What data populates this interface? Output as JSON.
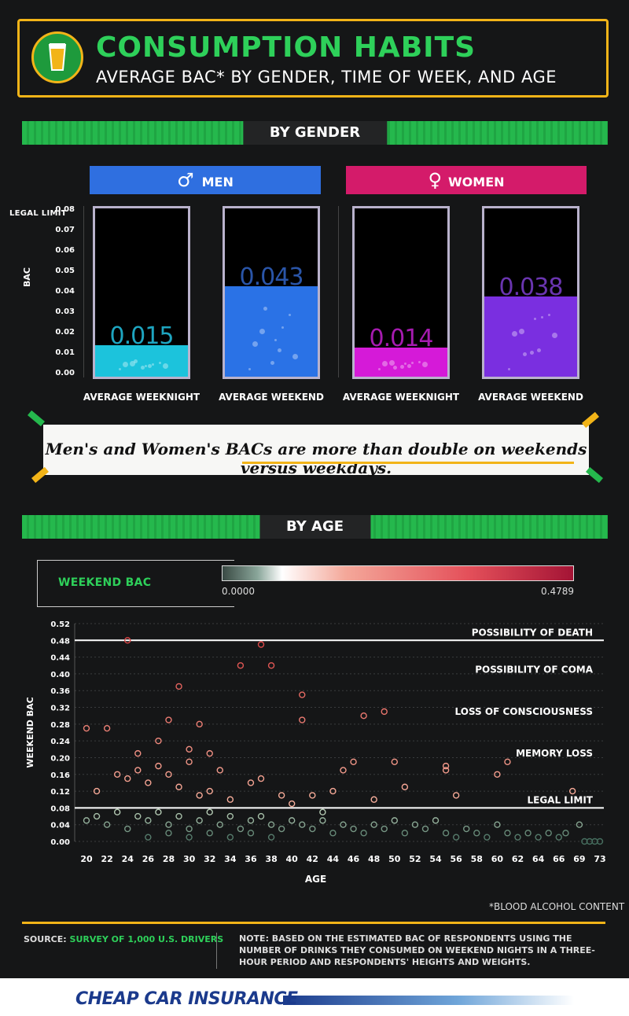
{
  "header": {
    "title": "CONSUMPTION HABITS",
    "subtitle": "AVERAGE BAC* BY GENDER, TIME OF WEEK, AND AGE"
  },
  "gender_section": {
    "band_label": "BY GENDER",
    "men_label": "MEN",
    "women_label": "WOMEN",
    "y_axis_label": "BAC",
    "legal_limit_label": "LEGAL LIMIT",
    "colors": {
      "men": "#2f6fe0",
      "women": "#d41b6a"
    }
  },
  "callout": {
    "text": "Men's and Women's BACs are more than double on weekends versus weekdays."
  },
  "age_section": {
    "band_label": "BY AGE",
    "legend_label": "WEEKEND BAC",
    "legend_min": "0.0000",
    "legend_max": "0.4789",
    "footnote": "*BLOOD ALCOHOL CONTENT"
  },
  "footer": {
    "source_prefix": "SOURCE:",
    "source_text": "SURVEY OF 1,000 U.S. DRIVERS",
    "note": "NOTE: BASED ON THE ESTIMATED BAC OF RESPONDENTS USING THE NUMBER OF DRINKS THEY CONSUMED ON WEEKEND NIGHTS IN A THREE-HOUR PERIOD AND RESPONDENTS' HEIGHTS AND WEIGHTS.",
    "brand": "CHEAP CAR INSURANCE"
  },
  "chart_data": [
    {
      "type": "bar",
      "ylabel": "BAC",
      "ylim": [
        0,
        0.08
      ],
      "y_ticks": [
        "0.00",
        "0.01",
        "0.02",
        "0.03",
        "0.04",
        "0.05",
        "0.06",
        "0.07",
        "0.08"
      ],
      "categories": [
        "AVERAGE WEEKNIGHT",
        "AVERAGE WEEKEND",
        "AVERAGE WEEKNIGHT",
        "AVERAGE WEEKEND"
      ],
      "groups": [
        "MEN",
        "MEN",
        "WOMEN",
        "WOMEN"
      ],
      "values": [
        0.015,
        0.043,
        0.014,
        0.038
      ],
      "value_labels": [
        "0.015",
        "0.043",
        "0.014",
        "0.038"
      ],
      "colors": [
        "#1cc3dc",
        "#2a72e6",
        "#d51ad8",
        "#7a2fe0"
      ],
      "label_colors": [
        "#1ea5c0",
        "#2a55a8",
        "#a61bb0",
        "#6a35b0"
      ]
    },
    {
      "type": "scatter",
      "xlabel": "AGE",
      "ylabel": "WEEKEND BAC",
      "ylim": [
        0,
        0.52
      ],
      "y_ticks": [
        "0.00",
        "0.04",
        "0.08",
        "0.12",
        "0.16",
        "0.20",
        "0.24",
        "0.28",
        "0.32",
        "0.36",
        "0.40",
        "0.44",
        "0.48",
        "0.52"
      ],
      "x_ticks": [
        "20",
        "22",
        "24",
        "26",
        "28",
        "30",
        "32",
        "34",
        "36",
        "38",
        "40",
        "42",
        "44",
        "46",
        "48",
        "50",
        "52",
        "54",
        "56",
        "58",
        "60",
        "62",
        "64",
        "66",
        "69",
        "73"
      ],
      "thresholds": [
        {
          "label": "POSSIBILITY OF DEATH",
          "value": 0.48,
          "line": true
        },
        {
          "label": "POSSIBILITY OF COMA",
          "value": 0.41,
          "line": false
        },
        {
          "label": "LOSS OF CONSCIOUSNESS",
          "value": 0.31,
          "line": false
        },
        {
          "label": "MEMORY LOSS",
          "value": 0.21,
          "line": false
        },
        {
          "label": "LEGAL LIMIT",
          "value": 0.08,
          "line": true
        }
      ],
      "points": [
        [
          20,
          0.27
        ],
        [
          22,
          0.27
        ],
        [
          24,
          0.48
        ],
        [
          25,
          0.21
        ],
        [
          27,
          0.24
        ],
        [
          28,
          0.29
        ],
        [
          29,
          0.37
        ],
        [
          30,
          0.22
        ],
        [
          31,
          0.28
        ],
        [
          32,
          0.21
        ],
        [
          35,
          0.42
        ],
        [
          36,
          0.14
        ],
        [
          37,
          0.47
        ],
        [
          38,
          0.42
        ],
        [
          41,
          0.35
        ],
        [
          41,
          0.29
        ],
        [
          42,
          0.11
        ],
        [
          44,
          0.12
        ],
        [
          45,
          0.17
        ],
        [
          46,
          0.19
        ],
        [
          47,
          0.3
        ],
        [
          49,
          0.31
        ],
        [
          50,
          0.19
        ],
        [
          51,
          0.13
        ],
        [
          55,
          0.17
        ],
        [
          55,
          0.18
        ],
        [
          60,
          0.16
        ],
        [
          61,
          0.19
        ],
        [
          68,
          0.12
        ],
        [
          21,
          0.12
        ],
        [
          23,
          0.16
        ],
        [
          24,
          0.15
        ],
        [
          25,
          0.17
        ],
        [
          26,
          0.14
        ],
        [
          27,
          0.18
        ],
        [
          28,
          0.16
        ],
        [
          29,
          0.13
        ],
        [
          30,
          0.19
        ],
        [
          31,
          0.11
        ],
        [
          32,
          0.12
        ],
        [
          33,
          0.17
        ],
        [
          34,
          0.1
        ],
        [
          37,
          0.15
        ],
        [
          39,
          0.11
        ],
        [
          40,
          0.09
        ],
        [
          43,
          0.07
        ],
        [
          48,
          0.1
        ],
        [
          56,
          0.11
        ],
        [
          20,
          0.05
        ],
        [
          21,
          0.06
        ],
        [
          22,
          0.04
        ],
        [
          23,
          0.07
        ],
        [
          24,
          0.03
        ],
        [
          25,
          0.06
        ],
        [
          26,
          0.05
        ],
        [
          27,
          0.07
        ],
        [
          28,
          0.04
        ],
        [
          29,
          0.06
        ],
        [
          30,
          0.03
        ],
        [
          31,
          0.05
        ],
        [
          32,
          0.07
        ],
        [
          33,
          0.04
        ],
        [
          34,
          0.06
        ],
        [
          35,
          0.03
        ],
        [
          36,
          0.05
        ],
        [
          37,
          0.06
        ],
        [
          38,
          0.04
        ],
        [
          39,
          0.03
        ],
        [
          40,
          0.05
        ],
        [
          41,
          0.04
        ],
        [
          42,
          0.03
        ],
        [
          43,
          0.05
        ],
        [
          44,
          0.02
        ],
        [
          45,
          0.04
        ],
        [
          46,
          0.03
        ],
        [
          47,
          0.02
        ],
        [
          48,
          0.04
        ],
        [
          49,
          0.03
        ],
        [
          50,
          0.05
        ],
        [
          51,
          0.02
        ],
        [
          52,
          0.04
        ],
        [
          53,
          0.03
        ],
        [
          54,
          0.05
        ],
        [
          55,
          0.02
        ],
        [
          56,
          0.01
        ],
        [
          57,
          0.03
        ],
        [
          58,
          0.02
        ],
        [
          59,
          0.01
        ],
        [
          60,
          0.04
        ],
        [
          61,
          0.02
        ],
        [
          62,
          0.01
        ],
        [
          63,
          0.02
        ],
        [
          64,
          0.01
        ],
        [
          65,
          0.02
        ],
        [
          66,
          0.01
        ],
        [
          67,
          0.02
        ],
        [
          69,
          0.04
        ],
        [
          70,
          0.0
        ],
        [
          71,
          0.0
        ],
        [
          72,
          0.0
        ],
        [
          73,
          0.0
        ],
        [
          26,
          0.01
        ],
        [
          28,
          0.02
        ],
        [
          30,
          0.01
        ],
        [
          32,
          0.02
        ],
        [
          34,
          0.01
        ],
        [
          36,
          0.02
        ],
        [
          38,
          0.01
        ]
      ]
    }
  ]
}
